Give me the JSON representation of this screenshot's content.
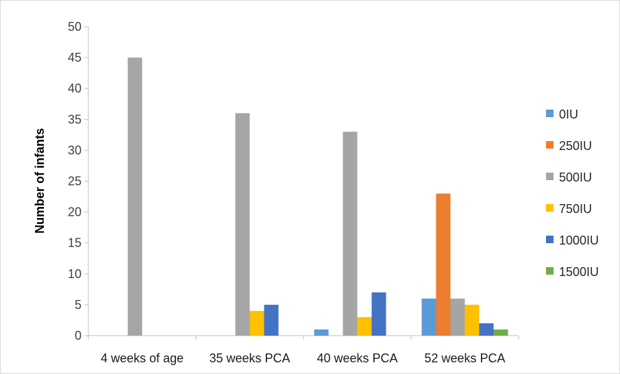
{
  "chart_data": {
    "type": "bar",
    "ylabel": "Number of infants",
    "xlabel": "",
    "ylim": [
      0,
      50
    ],
    "yticks": [
      0,
      5,
      10,
      15,
      20,
      25,
      30,
      35,
      40,
      45,
      50
    ],
    "categories": [
      "4 weeks of age",
      "35 weeks PCA",
      "40 weeks PCA",
      "52 weeks PCA"
    ],
    "series": [
      {
        "name": "0IU",
        "color": "#5b9bd5",
        "values": [
          0,
          0,
          1,
          6
        ]
      },
      {
        "name": "250IU",
        "color": "#ed7d31",
        "values": [
          0,
          0,
          0,
          23
        ]
      },
      {
        "name": "500IU",
        "color": "#a5a5a5",
        "values": [
          45,
          36,
          33,
          6
        ]
      },
      {
        "name": "750IU",
        "color": "#ffc000",
        "values": [
          0,
          4,
          3,
          5
        ]
      },
      {
        "name": "1000IU",
        "color": "#4472c4",
        "values": [
          0,
          5,
          7,
          2
        ]
      },
      {
        "name": "1500IU",
        "color": "#70ad47",
        "values": [
          0,
          0,
          0,
          1
        ]
      }
    ],
    "legend_position": "right",
    "grid": false
  }
}
